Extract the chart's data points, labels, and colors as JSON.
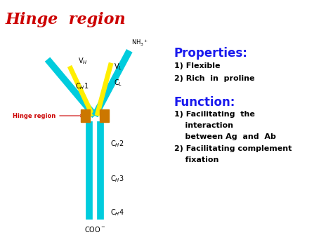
{
  "title": "Hinge  region",
  "title_color": "#cc0000",
  "title_fontsize": 16,
  "bg_color": "#ffffff",
  "cyan_color": "#00ccdd",
  "yellow_color": "#ffee00",
  "orange_color": "#cc7700",
  "hinge_label_color": "#cc0000",
  "properties_title": "Properties:",
  "properties_color": "#1a1aee",
  "properties_item1": "1) Flexible",
  "properties_item2": "2) Rich  in  proline",
  "function_title": "Function:",
  "function_color": "#1a1aee",
  "function_item1a": "1) Facilitating  the",
  "function_item1b": "    interaction",
  "function_item1c": "    between Ag  and  Ab",
  "function_item2a": "2) Facilitating complement",
  "function_item2b": "    fixation",
  "hinge_region_label": "Hinge region"
}
